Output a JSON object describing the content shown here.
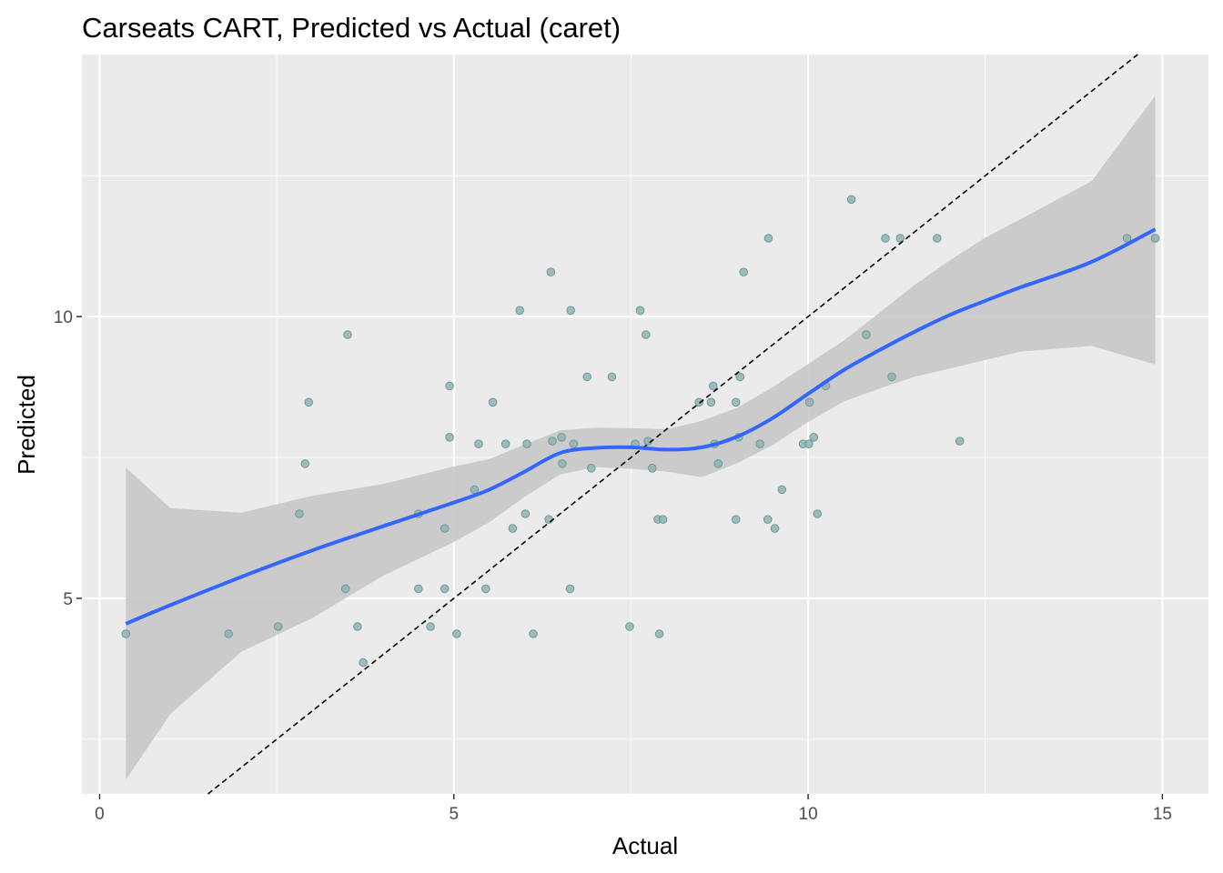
{
  "chart_data": {
    "type": "scatter",
    "title": "Carseats CART, Predicted vs Actual (caret)",
    "xlabel": "Actual",
    "ylabel": "Predicted",
    "xlim": [
      -0.25,
      15.65
    ],
    "ylim": [
      1.53,
      14.65
    ],
    "x_ticks": [
      0,
      5,
      10,
      15
    ],
    "y_ticks": [
      5,
      10
    ],
    "grid": true,
    "background": "#ebebeb",
    "colors": {
      "points": "#8fb3b3",
      "points_edge": "#6f9a9a",
      "smooth_line": "#3366ff",
      "confidence_band": "#c8c8c8",
      "reference_line": "#000000"
    },
    "reference_line": {
      "style": "dashed",
      "slope": 1,
      "intercept": 0
    },
    "points": [
      {
        "x": 0.37,
        "y": 4.37
      },
      {
        "x": 1.82,
        "y": 4.37
      },
      {
        "x": 2.52,
        "y": 4.5
      },
      {
        "x": 2.82,
        "y": 6.5
      },
      {
        "x": 2.9,
        "y": 7.39
      },
      {
        "x": 2.95,
        "y": 8.48
      },
      {
        "x": 3.47,
        "y": 5.17
      },
      {
        "x": 3.5,
        "y": 9.68
      },
      {
        "x": 3.64,
        "y": 4.5
      },
      {
        "x": 3.72,
        "y": 3.86
      },
      {
        "x": 4.5,
        "y": 6.5
      },
      {
        "x": 4.5,
        "y": 5.17
      },
      {
        "x": 4.67,
        "y": 4.5
      },
      {
        "x": 4.87,
        "y": 6.24
      },
      {
        "x": 4.87,
        "y": 5.17
      },
      {
        "x": 4.94,
        "y": 8.77
      },
      {
        "x": 4.94,
        "y": 7.86
      },
      {
        "x": 5.04,
        "y": 4.37
      },
      {
        "x": 5.29,
        "y": 6.93
      },
      {
        "x": 5.35,
        "y": 7.74
      },
      {
        "x": 5.45,
        "y": 5.17
      },
      {
        "x": 5.55,
        "y": 8.48
      },
      {
        "x": 5.73,
        "y": 7.74
      },
      {
        "x": 5.83,
        "y": 6.24
      },
      {
        "x": 5.93,
        "y": 10.11
      },
      {
        "x": 6.01,
        "y": 6.5
      },
      {
        "x": 6.03,
        "y": 7.74
      },
      {
        "x": 6.12,
        "y": 4.37
      },
      {
        "x": 6.34,
        "y": 6.4
      },
      {
        "x": 6.37,
        "y": 10.79
      },
      {
        "x": 6.39,
        "y": 7.79
      },
      {
        "x": 6.52,
        "y": 7.86
      },
      {
        "x": 6.53,
        "y": 7.39
      },
      {
        "x": 6.64,
        "y": 5.17
      },
      {
        "x": 6.65,
        "y": 10.11
      },
      {
        "x": 6.69,
        "y": 7.74
      },
      {
        "x": 6.88,
        "y": 8.93
      },
      {
        "x": 6.94,
        "y": 7.31
      },
      {
        "x": 7.23,
        "y": 8.93
      },
      {
        "x": 7.48,
        "y": 4.5
      },
      {
        "x": 7.56,
        "y": 7.74
      },
      {
        "x": 7.63,
        "y": 10.11
      },
      {
        "x": 7.71,
        "y": 9.68
      },
      {
        "x": 7.74,
        "y": 7.79
      },
      {
        "x": 7.8,
        "y": 7.31
      },
      {
        "x": 7.88,
        "y": 6.4
      },
      {
        "x": 7.9,
        "y": 4.37
      },
      {
        "x": 7.95,
        "y": 6.4
      },
      {
        "x": 8.46,
        "y": 8.48
      },
      {
        "x": 8.63,
        "y": 8.48
      },
      {
        "x": 8.66,
        "y": 8.77
      },
      {
        "x": 8.68,
        "y": 7.74
      },
      {
        "x": 8.73,
        "y": 7.39
      },
      {
        "x": 8.98,
        "y": 8.48
      },
      {
        "x": 8.98,
        "y": 6.4
      },
      {
        "x": 9.02,
        "y": 7.86
      },
      {
        "x": 9.04,
        "y": 8.93
      },
      {
        "x": 9.09,
        "y": 10.79
      },
      {
        "x": 9.32,
        "y": 7.74
      },
      {
        "x": 9.43,
        "y": 6.4
      },
      {
        "x": 9.44,
        "y": 11.39
      },
      {
        "x": 9.53,
        "y": 6.24
      },
      {
        "x": 9.63,
        "y": 6.93
      },
      {
        "x": 9.93,
        "y": 7.74
      },
      {
        "x": 10.01,
        "y": 7.74
      },
      {
        "x": 10.02,
        "y": 8.48
      },
      {
        "x": 10.08,
        "y": 7.86
      },
      {
        "x": 10.13,
        "y": 6.5
      },
      {
        "x": 10.25,
        "y": 8.77
      },
      {
        "x": 10.61,
        "y": 12.08
      },
      {
        "x": 10.82,
        "y": 9.68
      },
      {
        "x": 11.09,
        "y": 11.39
      },
      {
        "x": 11.18,
        "y": 8.93
      },
      {
        "x": 11.3,
        "y": 11.39
      },
      {
        "x": 11.82,
        "y": 11.39
      },
      {
        "x": 12.14,
        "y": 7.79
      },
      {
        "x": 14.5,
        "y": 11.39
      },
      {
        "x": 14.9,
        "y": 11.39
      }
    ],
    "smooth": {
      "method": "loess",
      "x": [
        0.37,
        1.0,
        2.0,
        3.0,
        4.0,
        5.0,
        5.5,
        6.0,
        6.5,
        7.0,
        7.5,
        8.0,
        8.5,
        9.0,
        9.5,
        10.0,
        10.5,
        11.0,
        11.5,
        12.0,
        12.5,
        13.0,
        14.0,
        14.9
      ],
      "y": [
        4.55,
        4.88,
        5.38,
        5.85,
        6.28,
        6.7,
        6.93,
        7.25,
        7.58,
        7.67,
        7.68,
        7.64,
        7.68,
        7.87,
        8.2,
        8.63,
        9.05,
        9.4,
        9.73,
        10.03,
        10.28,
        10.52,
        10.97,
        11.55
      ],
      "lower": [
        1.78,
        2.95,
        4.05,
        4.65,
        5.4,
        6.0,
        6.35,
        6.8,
        7.2,
        7.33,
        7.3,
        7.25,
        7.15,
        7.4,
        7.72,
        8.13,
        8.49,
        8.72,
        8.93,
        9.08,
        9.23,
        9.38,
        9.48,
        9.15
      ],
      "upper": [
        7.32,
        6.6,
        6.52,
        6.82,
        7.03,
        7.34,
        7.47,
        7.73,
        7.98,
        8.03,
        8.02,
        8.0,
        8.15,
        8.38,
        8.75,
        9.16,
        9.57,
        10.06,
        10.56,
        11.0,
        11.4,
        11.73,
        12.4,
        13.92
      ]
    }
  }
}
